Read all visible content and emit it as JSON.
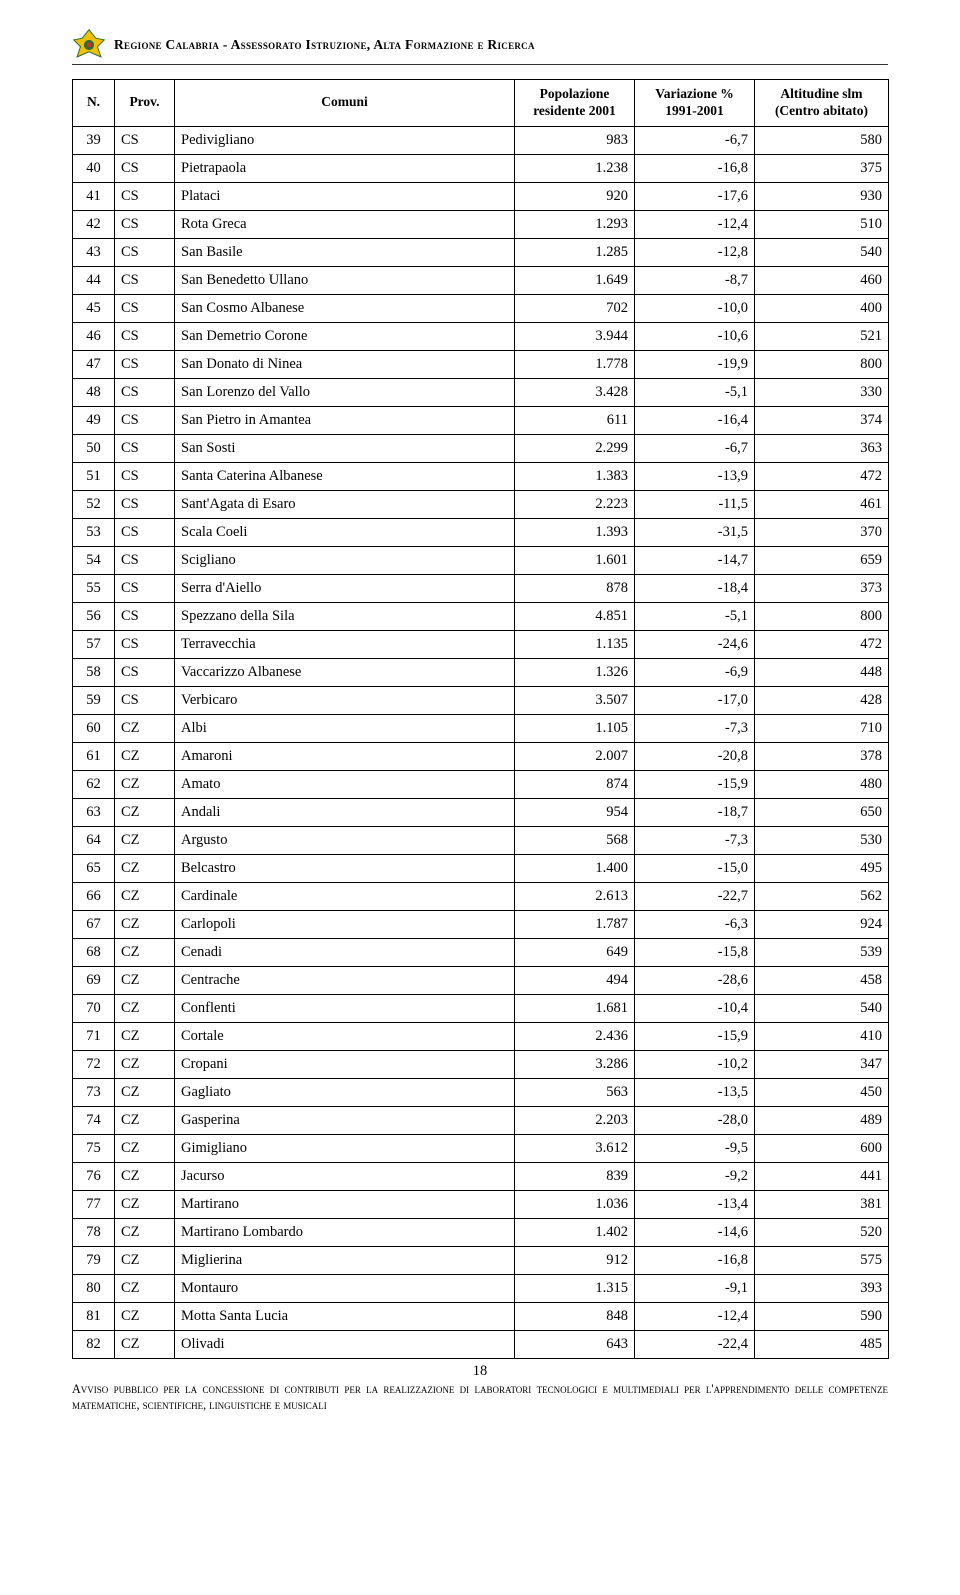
{
  "header": {
    "org_text": "Regione Calabria - Assessorato Istruzione, Alta Formazione e Ricerca"
  },
  "table": {
    "columns": {
      "n": "N.",
      "prov": "Prov.",
      "comuni": "Comuni",
      "pop": "Popolazione residente 2001",
      "var": "Variazione % 1991-2001",
      "alt": "Altitudine slm (Centro abitato)"
    },
    "rows": [
      {
        "n": "39",
        "prov": "CS",
        "com": "Pedivigliano",
        "pop": "983",
        "var": "-6,7",
        "alt": "580"
      },
      {
        "n": "40",
        "prov": "CS",
        "com": "Pietrapaola",
        "pop": "1.238",
        "var": "-16,8",
        "alt": "375"
      },
      {
        "n": "41",
        "prov": "CS",
        "com": "Plataci",
        "pop": "920",
        "var": "-17,6",
        "alt": "930"
      },
      {
        "n": "42",
        "prov": "CS",
        "com": "Rota Greca",
        "pop": "1.293",
        "var": "-12,4",
        "alt": "510"
      },
      {
        "n": "43",
        "prov": "CS",
        "com": "San Basile",
        "pop": "1.285",
        "var": "-12,8",
        "alt": "540"
      },
      {
        "n": "44",
        "prov": "CS",
        "com": "San Benedetto Ullano",
        "pop": "1.649",
        "var": "-8,7",
        "alt": "460"
      },
      {
        "n": "45",
        "prov": "CS",
        "com": "San Cosmo Albanese",
        "pop": "702",
        "var": "-10,0",
        "alt": "400"
      },
      {
        "n": "46",
        "prov": "CS",
        "com": "San Demetrio Corone",
        "pop": "3.944",
        "var": "-10,6",
        "alt": "521"
      },
      {
        "n": "47",
        "prov": "CS",
        "com": "San Donato di Ninea",
        "pop": "1.778",
        "var": "-19,9",
        "alt": "800"
      },
      {
        "n": "48",
        "prov": "CS",
        "com": "San Lorenzo del Vallo",
        "pop": "3.428",
        "var": "-5,1",
        "alt": "330"
      },
      {
        "n": "49",
        "prov": "CS",
        "com": "San Pietro in Amantea",
        "pop": "611",
        "var": "-16,4",
        "alt": "374"
      },
      {
        "n": "50",
        "prov": "CS",
        "com": "San Sosti",
        "pop": "2.299",
        "var": "-6,7",
        "alt": "363"
      },
      {
        "n": "51",
        "prov": "CS",
        "com": "Santa Caterina Albanese",
        "pop": "1.383",
        "var": "-13,9",
        "alt": "472"
      },
      {
        "n": "52",
        "prov": "CS",
        "com": "Sant'Agata di Esaro",
        "pop": "2.223",
        "var": "-11,5",
        "alt": "461"
      },
      {
        "n": "53",
        "prov": "CS",
        "com": "Scala Coeli",
        "pop": "1.393",
        "var": "-31,5",
        "alt": "370"
      },
      {
        "n": "54",
        "prov": "CS",
        "com": "Scigliano",
        "pop": "1.601",
        "var": "-14,7",
        "alt": "659"
      },
      {
        "n": "55",
        "prov": "CS",
        "com": "Serra d'Aiello",
        "pop": "878",
        "var": "-18,4",
        "alt": "373"
      },
      {
        "n": "56",
        "prov": "CS",
        "com": "Spezzano della Sila",
        "pop": "4.851",
        "var": "-5,1",
        "alt": "800"
      },
      {
        "n": "57",
        "prov": "CS",
        "com": "Terravecchia",
        "pop": "1.135",
        "var": "-24,6",
        "alt": "472"
      },
      {
        "n": "58",
        "prov": "CS",
        "com": "Vaccarizzo Albanese",
        "pop": "1.326",
        "var": "-6,9",
        "alt": "448"
      },
      {
        "n": "59",
        "prov": "CS",
        "com": "Verbicaro",
        "pop": "3.507",
        "var": "-17,0",
        "alt": "428"
      },
      {
        "n": "60",
        "prov": "CZ",
        "com": "Albi",
        "pop": "1.105",
        "var": "-7,3",
        "alt": "710"
      },
      {
        "n": "61",
        "prov": "CZ",
        "com": "Amaroni",
        "pop": "2.007",
        "var": "-20,8",
        "alt": "378"
      },
      {
        "n": "62",
        "prov": "CZ",
        "com": "Amato",
        "pop": "874",
        "var": "-15,9",
        "alt": "480"
      },
      {
        "n": "63",
        "prov": "CZ",
        "com": "Andali",
        "pop": "954",
        "var": "-18,7",
        "alt": "650"
      },
      {
        "n": "64",
        "prov": "CZ",
        "com": "Argusto",
        "pop": "568",
        "var": "-7,3",
        "alt": "530"
      },
      {
        "n": "65",
        "prov": "CZ",
        "com": "Belcastro",
        "pop": "1.400",
        "var": "-15,0",
        "alt": "495"
      },
      {
        "n": "66",
        "prov": "CZ",
        "com": "Cardinale",
        "pop": "2.613",
        "var": "-22,7",
        "alt": "562"
      },
      {
        "n": "67",
        "prov": "CZ",
        "com": "Carlopoli",
        "pop": "1.787",
        "var": "-6,3",
        "alt": "924"
      },
      {
        "n": "68",
        "prov": "CZ",
        "com": "Cenadi",
        "pop": "649",
        "var": "-15,8",
        "alt": "539"
      },
      {
        "n": "69",
        "prov": "CZ",
        "com": "Centrache",
        "pop": "494",
        "var": "-28,6",
        "alt": "458"
      },
      {
        "n": "70",
        "prov": "CZ",
        "com": "Conflenti",
        "pop": "1.681",
        "var": "-10,4",
        "alt": "540"
      },
      {
        "n": "71",
        "prov": "CZ",
        "com": "Cortale",
        "pop": "2.436",
        "var": "-15,9",
        "alt": "410"
      },
      {
        "n": "72",
        "prov": "CZ",
        "com": "Cropani",
        "pop": "3.286",
        "var": "-10,2",
        "alt": "347"
      },
      {
        "n": "73",
        "prov": "CZ",
        "com": "Gagliato",
        "pop": "563",
        "var": "-13,5",
        "alt": "450"
      },
      {
        "n": "74",
        "prov": "CZ",
        "com": "Gasperina",
        "pop": "2.203",
        "var": "-28,0",
        "alt": "489"
      },
      {
        "n": "75",
        "prov": "CZ",
        "com": "Gimigliano",
        "pop": "3.612",
        "var": "-9,5",
        "alt": "600"
      },
      {
        "n": "76",
        "prov": "CZ",
        "com": "Jacurso",
        "pop": "839",
        "var": "-9,2",
        "alt": "441"
      },
      {
        "n": "77",
        "prov": "CZ",
        "com": "Martirano",
        "pop": "1.036",
        "var": "-13,4",
        "alt": "381"
      },
      {
        "n": "78",
        "prov": "CZ",
        "com": "Martirano Lombardo",
        "pop": "1.402",
        "var": "-14,6",
        "alt": "520"
      },
      {
        "n": "79",
        "prov": "CZ",
        "com": "Miglierina",
        "pop": "912",
        "var": "-16,8",
        "alt": "575"
      },
      {
        "n": "80",
        "prov": "CZ",
        "com": "Montauro",
        "pop": "1.315",
        "var": "-9,1",
        "alt": "393"
      },
      {
        "n": "81",
        "prov": "CZ",
        "com": "Motta Santa Lucia",
        "pop": "848",
        "var": "-12,4",
        "alt": "590"
      },
      {
        "n": "82",
        "prov": "CZ",
        "com": "Olivadi",
        "pop": "643",
        "var": "-22,4",
        "alt": "485"
      }
    ]
  },
  "page_number": "18",
  "footer_text": "Avviso pubblico per la concessione di contributi per la realizzazione di laboratori tecnologici e multimediali per l'apprendimento delle competenze matematiche, scientifiche, linguistiche e musicali"
}
